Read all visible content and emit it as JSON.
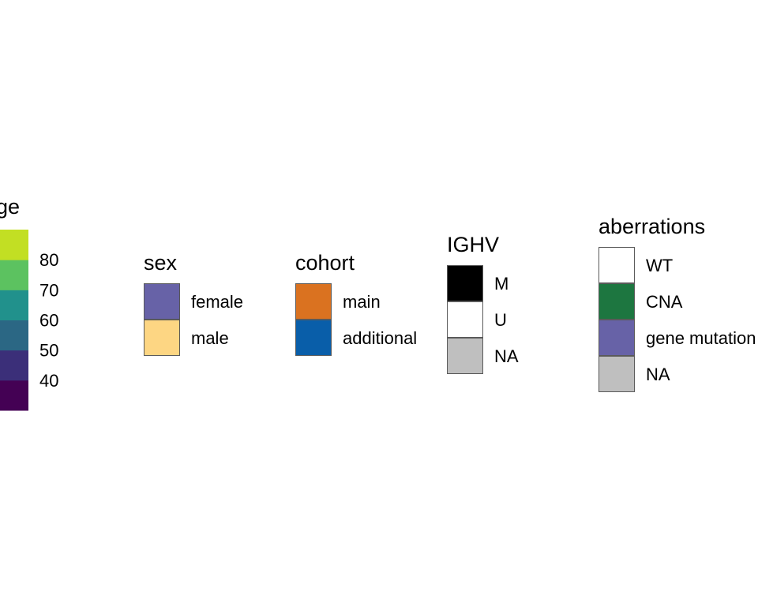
{
  "chart_data": {
    "type": "legend",
    "colorbar": {
      "title": "age",
      "ticks": [
        40,
        50,
        60,
        70,
        80
      ],
      "range": [
        30,
        90
      ],
      "bands": [
        "#440154",
        "#3B2F79",
        "#2B6784",
        "#21918C",
        "#5CC260",
        "#C2DF23"
      ]
    },
    "legends": [
      {
        "title": "sex",
        "items": [
          {
            "label": "female",
            "color": "#6762A7"
          },
          {
            "label": "male",
            "color": "#FDD683"
          }
        ]
      },
      {
        "title": "cohort",
        "items": [
          {
            "label": "main",
            "color": "#DA7220"
          },
          {
            "label": "additional",
            "color": "#095EA9"
          }
        ]
      },
      {
        "title": "IGHV",
        "items": [
          {
            "label": "M",
            "color": "#000000"
          },
          {
            "label": "U",
            "color": "#FFFFFF"
          },
          {
            "label": "NA",
            "color": "#BFBFBF"
          }
        ]
      },
      {
        "title": "aberrations",
        "items": [
          {
            "label": "WT",
            "color": "#FFFFFF"
          },
          {
            "label": "CNA",
            "color": "#1D7640"
          },
          {
            "label": "gene mutation",
            "color": "#6762A7"
          },
          {
            "label": "NA",
            "color": "#BFBFBF"
          }
        ]
      }
    ]
  }
}
